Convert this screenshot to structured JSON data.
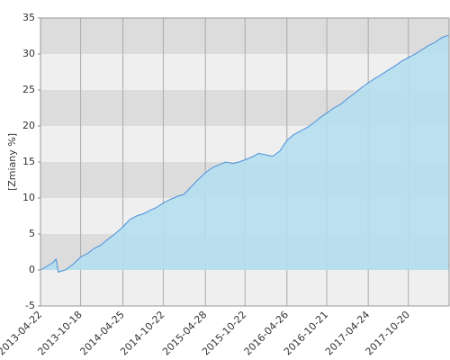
{
  "chart_data": {
    "type": "area",
    "y_label": "[Zmiany %]",
    "x": [
      "2013-04-22",
      "2013-05-20",
      "2013-06-15",
      "2013-07-01",
      "2013-07-10",
      "2013-08-10",
      "2013-09-15",
      "2013-10-18",
      "2013-11-18",
      "2013-12-18",
      "2014-01-18",
      "2014-02-18",
      "2014-03-20",
      "2014-04-25",
      "2014-05-25",
      "2014-06-25",
      "2014-07-25",
      "2014-08-25",
      "2014-09-22",
      "2014-10-22",
      "2014-11-22",
      "2014-12-22",
      "2015-01-22",
      "2015-02-22",
      "2015-03-25",
      "2015-04-28",
      "2015-05-28",
      "2015-06-28",
      "2015-07-28",
      "2015-08-28",
      "2015-09-25",
      "2015-10-22",
      "2015-11-22",
      "2015-12-22",
      "2016-01-22",
      "2016-02-22",
      "2016-03-25",
      "2016-04-26",
      "2016-05-26",
      "2016-06-26",
      "2016-07-26",
      "2016-08-26",
      "2016-09-22",
      "2016-10-21",
      "2016-11-21",
      "2016-12-21",
      "2017-01-21",
      "2017-02-21",
      "2017-03-24",
      "2017-04-24",
      "2017-05-24",
      "2017-06-24",
      "2017-07-24",
      "2017-08-24",
      "2017-09-20",
      "2017-10-20",
      "2017-11-20",
      "2017-12-20",
      "2018-01-20",
      "2018-02-20",
      "2018-03-20",
      "2018-04-18"
    ],
    "values": [
      0,
      0.5,
      1.0,
      1.5,
      -0.3,
      0,
      0.8,
      1.8,
      2.3,
      3.0,
      3.5,
      4.3,
      5.0,
      6.0,
      7.0,
      7.5,
      7.8,
      8.3,
      8.7,
      9.3,
      9.8,
      10.2,
      10.5,
      11.5,
      12.5,
      13.5,
      14.2,
      14.6,
      15.0,
      14.8,
      15.0,
      15.3,
      15.7,
      16.2,
      16.0,
      15.8,
      16.5,
      18.0,
      18.8,
      19.3,
      19.8,
      20.5,
      21.2,
      21.8,
      22.5,
      23.0,
      23.8,
      24.5,
      25.3,
      26.0,
      26.6,
      27.2,
      27.8,
      28.4,
      29.0,
      29.5,
      30.0,
      30.6,
      31.2,
      31.7,
      32.3,
      32.6
    ],
    "xlim": [
      "2013-04-22",
      "2018-04-20"
    ],
    "xticks": [
      "2013-04-22",
      "2013-10-18",
      "2014-04-25",
      "2014-10-22",
      "2015-04-28",
      "2015-10-22",
      "2016-04-26",
      "2016-10-21",
      "2017-04-24",
      "2017-10-20"
    ],
    "ylim": [
      -5,
      35
    ],
    "yticks": [
      -5,
      0,
      5,
      10,
      15,
      20,
      25,
      30,
      35
    ],
    "color": "#4a90d9",
    "fill": "#b5def0",
    "grid": true
  }
}
